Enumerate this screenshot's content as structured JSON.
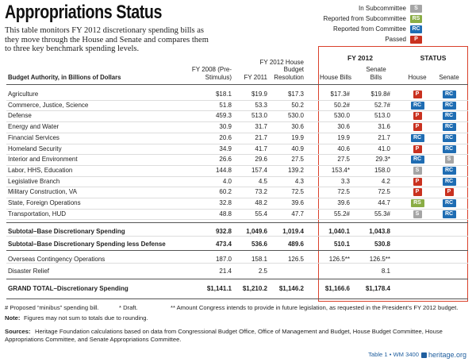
{
  "header": {
    "title": "Appropriations Status",
    "intro": "This table monitors FY 2012 discretionary spending bills as they move through the House and Senate and compares them to three key benchmark spending levels."
  },
  "legend": [
    {
      "label": "In Subcommittee",
      "code": "S",
      "color": "#a5a5a5"
    },
    {
      "label": "Reported from Subcommittee",
      "code": "RS",
      "color": "#8aad45"
    },
    {
      "label": "Reported from Committee",
      "code": "RC",
      "color": "#1f6db3"
    },
    {
      "label": "Passed",
      "code": "P",
      "color": "#c9311f"
    }
  ],
  "table": {
    "label_header": "Budget Authority, in Billions of Dollars",
    "columns": [
      "FY 2008 (Pre-Stimulus)",
      "FY 2011",
      "FY 2012 House Budget Resolution",
      "House Bills",
      "Senate Bills"
    ],
    "group_fy": "FY 2012",
    "group_status": "STATUS",
    "status_columns": [
      "House",
      "Senate"
    ],
    "rows": [
      {
        "label": "Agriculture",
        "values": [
          "$18.1",
          "$19.9",
          "$17.3",
          "$17.3#",
          "$19.8#"
        ],
        "house": "P",
        "senate": "RC"
      },
      {
        "label": "Commerce, Justice, Science",
        "values": [
          "51.8",
          "53.3",
          "50.2",
          "50.2#",
          "52.7#"
        ],
        "house": "RC",
        "senate": "RC"
      },
      {
        "label": "Defense",
        "values": [
          "459.3",
          "513.0",
          "530.0",
          "530.0",
          "513.0"
        ],
        "house": "P",
        "senate": "RC"
      },
      {
        "label": "Energy and Water",
        "values": [
          "30.9",
          "31.7",
          "30.6",
          "30.6",
          "31.6"
        ],
        "house": "P",
        "senate": "RC"
      },
      {
        "label": "Financial Services",
        "values": [
          "20.6",
          "21.7",
          "19.9",
          "19.9",
          "21.7"
        ],
        "house": "RC",
        "senate": "RC"
      },
      {
        "label": "Homeland Security",
        "values": [
          "34.9",
          "41.7",
          "40.9",
          "40.6",
          "41.0"
        ],
        "house": "P",
        "senate": "RC"
      },
      {
        "label": "Interior and Environment",
        "values": [
          "26.6",
          "29.6",
          "27.5",
          "27.5",
          "29.3*"
        ],
        "house": "RC",
        "senate": "S"
      },
      {
        "label": "Labor, HHS, Education",
        "values": [
          "144.8",
          "157.4",
          "139.2",
          "153.4*",
          "158.0"
        ],
        "house": "S",
        "senate": "RC"
      },
      {
        "label": "Legislative Branch",
        "values": [
          "4.0",
          "4.5",
          "4.3",
          "3.3",
          "4.2"
        ],
        "house": "P",
        "senate": "RC"
      },
      {
        "label": "Military Construction, VA",
        "values": [
          "60.2",
          "73.2",
          "72.5",
          "72.5",
          "72.5"
        ],
        "house": "P",
        "senate": "P"
      },
      {
        "label": "State, Foreign Operations",
        "values": [
          "32.8",
          "48.2",
          "39.6",
          "39.6",
          "44.7"
        ],
        "house": "RS",
        "senate": "RC"
      },
      {
        "label": "Transportation, HUD",
        "values": [
          "48.8",
          "55.4",
          "47.7",
          "55.2#",
          "55.3#"
        ],
        "house": "S",
        "senate": "RC"
      }
    ],
    "summary": [
      {
        "label": "Subtotal–Base Discretionary Spending",
        "values": [
          "932.8",
          "1,049.6",
          "1,019.4",
          "1,040.1",
          "1,043.8"
        ]
      },
      {
        "label": "Subtotal–Base Discretionary Spending less Defense",
        "values": [
          "473.4",
          "536.6",
          "489.6",
          "510.1",
          "530.8"
        ]
      },
      {
        "label": "Overseas Contingency Operations",
        "values": [
          "187.0",
          "158.1",
          "126.5",
          "126.5**",
          "126.5**"
        ]
      },
      {
        "label": "Disaster Relief",
        "values": [
          "21.4",
          "2.5",
          null,
          null,
          "8.1"
        ]
      },
      {
        "label": "GRAND TOTAL–Discretionary Spending",
        "values": [
          "$1,141.1",
          "$1,210.2",
          "$1,146.2",
          "$1,166.6",
          "$1,178.4"
        ]
      }
    ]
  },
  "footnotes": [
    "# Proposed “minibus” spending bill.",
    "* Draft.",
    "** Amount Congress intends to provide in future legislation, as requested in the President’s FY 2012 budget."
  ],
  "note": {
    "label": "Note:",
    "text": "Figures may not sum to totals due to rounding."
  },
  "sources": {
    "label": "Sources:",
    "text": "Heritage Foundation calculations based on data from Congressional Budget Office, Office of Management and Budget, House Budget Committee, House Appropriations Committee, and Senate Appropriations Committee."
  },
  "footer": {
    "table_ref": "Table 1 • WM 3400",
    "site": "heritage.org"
  }
}
